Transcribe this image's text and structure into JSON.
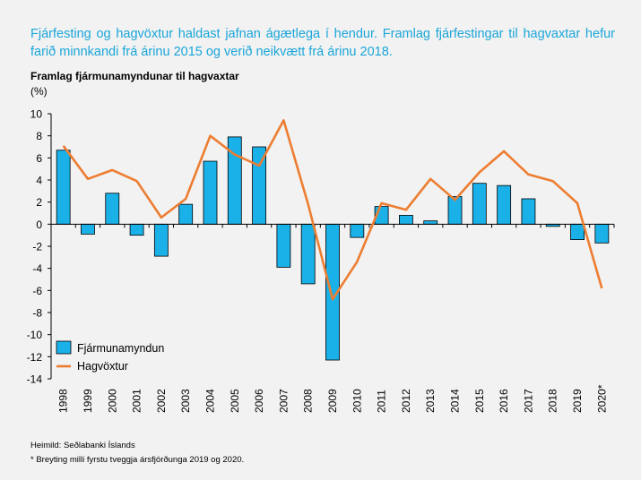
{
  "header": {
    "headline": "Fjárfesting og hagvöxtur haldast jafnan ágætlega í hendur. Framlag fjárfestingar til hagvaxtar hefur farið minnkandi frá árinu 2015 og verið neikvætt frá árinu 2018."
  },
  "chart_data": {
    "type": "bar",
    "title": "Framlag fjármunamyndunar til hagvaxtar",
    "unit": "(%)",
    "categories": [
      "1998",
      "1999",
      "2000",
      "2001",
      "2002",
      "2003",
      "2004",
      "2005",
      "2006",
      "2007",
      "2008",
      "2009",
      "2010",
      "2011",
      "2012",
      "2013",
      "2014",
      "2015",
      "2016",
      "2017",
      "2018",
      "2019",
      "2020*"
    ],
    "series": [
      {
        "name": "Fjármunamyndun",
        "type": "bar",
        "color": "#1ab0e8",
        "values": [
          6.7,
          -0.9,
          2.8,
          -1.0,
          -2.9,
          1.8,
          5.7,
          7.9,
          7.0,
          -3.9,
          -5.4,
          -12.3,
          -1.2,
          1.6,
          0.8,
          0.3,
          2.5,
          3.7,
          3.5,
          2.3,
          -0.2,
          -1.4,
          -1.7
        ]
      },
      {
        "name": "Hagvöxtur",
        "type": "line",
        "color": "#ed7d31",
        "values": [
          7.1,
          4.1,
          4.9,
          3.9,
          0.6,
          2.3,
          8.0,
          6.3,
          5.3,
          9.4,
          1.8,
          -6.8,
          -3.4,
          1.9,
          1.3,
          4.1,
          2.2,
          4.7,
          6.6,
          4.5,
          3.9,
          1.9,
          -5.8
        ]
      }
    ],
    "ylim": [
      -14,
      10
    ],
    "yticks": [
      -14,
      -12,
      -10,
      -8,
      -6,
      -4,
      -2,
      0,
      2,
      4,
      6,
      8,
      10
    ],
    "legend_position": "bottom-left",
    "grid": false
  },
  "footer": {
    "source": "Heimild: Seðlabanki Íslands",
    "footnote": "* Breyting milli fyrstu tveggja ársfjórðunga 2019 og 2020."
  }
}
